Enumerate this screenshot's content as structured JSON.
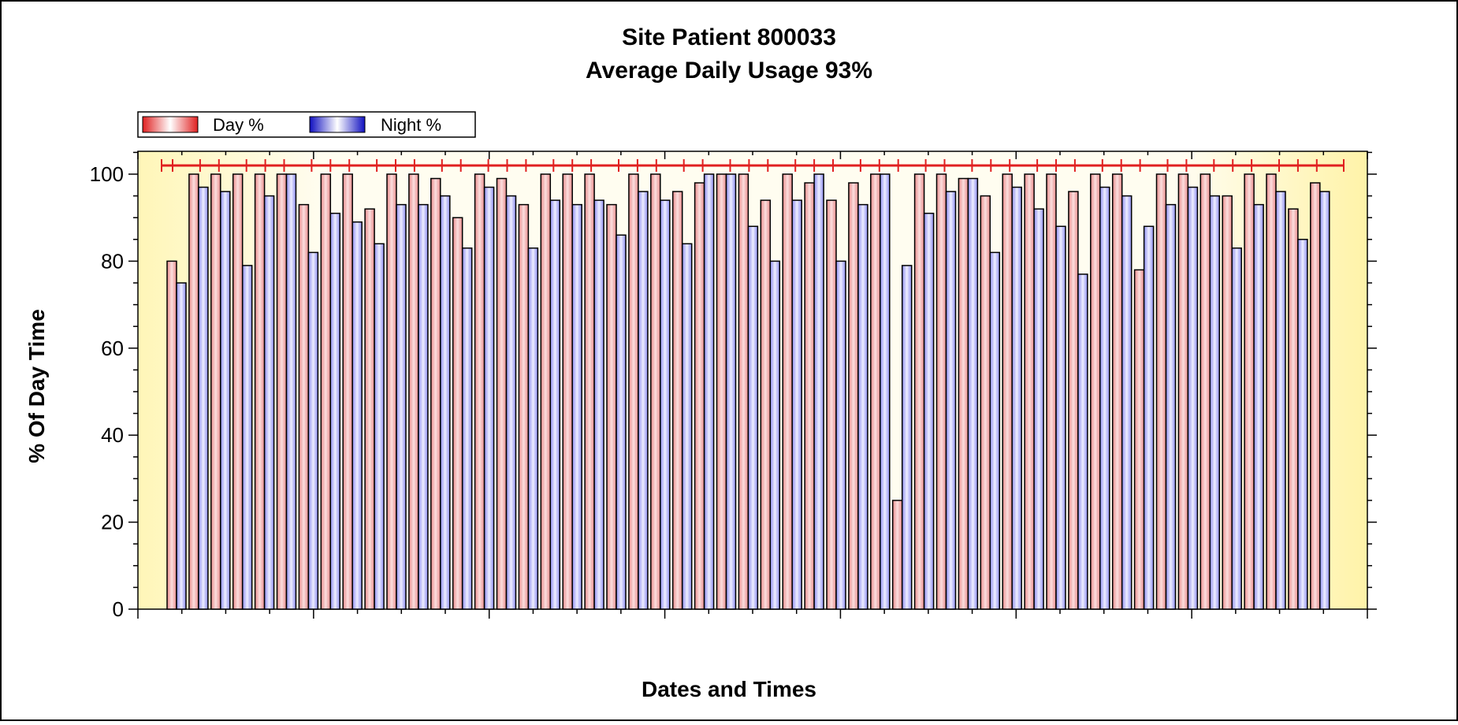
{
  "chart_data": {
    "type": "bar",
    "title": "Site Patient 800033",
    "subtitle": "Average Daily Usage 93%",
    "xlabel": "Dates and Times",
    "ylabel": "% Of Day Time",
    "ylim": [
      0,
      105
    ],
    "yticks": [
      "0",
      "20",
      "40",
      "60",
      "80",
      "100"
    ],
    "grid": false,
    "legend_placement": "top-left",
    "colors": {
      "day": "#e03030",
      "night": "#2020d0",
      "background": "#fffbd8",
      "reference_line": "#e02020"
    },
    "reference_line_value": 102,
    "series": [
      {
        "name": "Day %",
        "values": [
          80,
          100,
          100,
          100,
          100,
          100,
          93,
          100,
          100,
          92,
          100,
          100,
          99,
          90,
          100,
          99,
          93,
          100,
          100,
          100,
          93,
          100,
          100,
          96,
          98,
          100,
          100,
          94,
          100,
          98,
          94,
          98,
          100,
          25,
          100,
          100,
          99,
          95,
          100,
          100,
          100,
          96,
          100,
          100,
          78,
          100,
          100,
          100,
          95,
          100,
          100,
          92,
          98
        ]
      },
      {
        "name": "Night %",
        "values": [
          75,
          97,
          96,
          79,
          95,
          100,
          82,
          91,
          89,
          84,
          93,
          93,
          95,
          83,
          97,
          95,
          83,
          94,
          93,
          94,
          86,
          96,
          94,
          84,
          100,
          100,
          88,
          80,
          94,
          100,
          80,
          93,
          100,
          79,
          91,
          96,
          99,
          82,
          97,
          92,
          88,
          77,
          97,
          95,
          88,
          93,
          97,
          95,
          83,
          93,
          96,
          85,
          96
        ]
      }
    ]
  }
}
